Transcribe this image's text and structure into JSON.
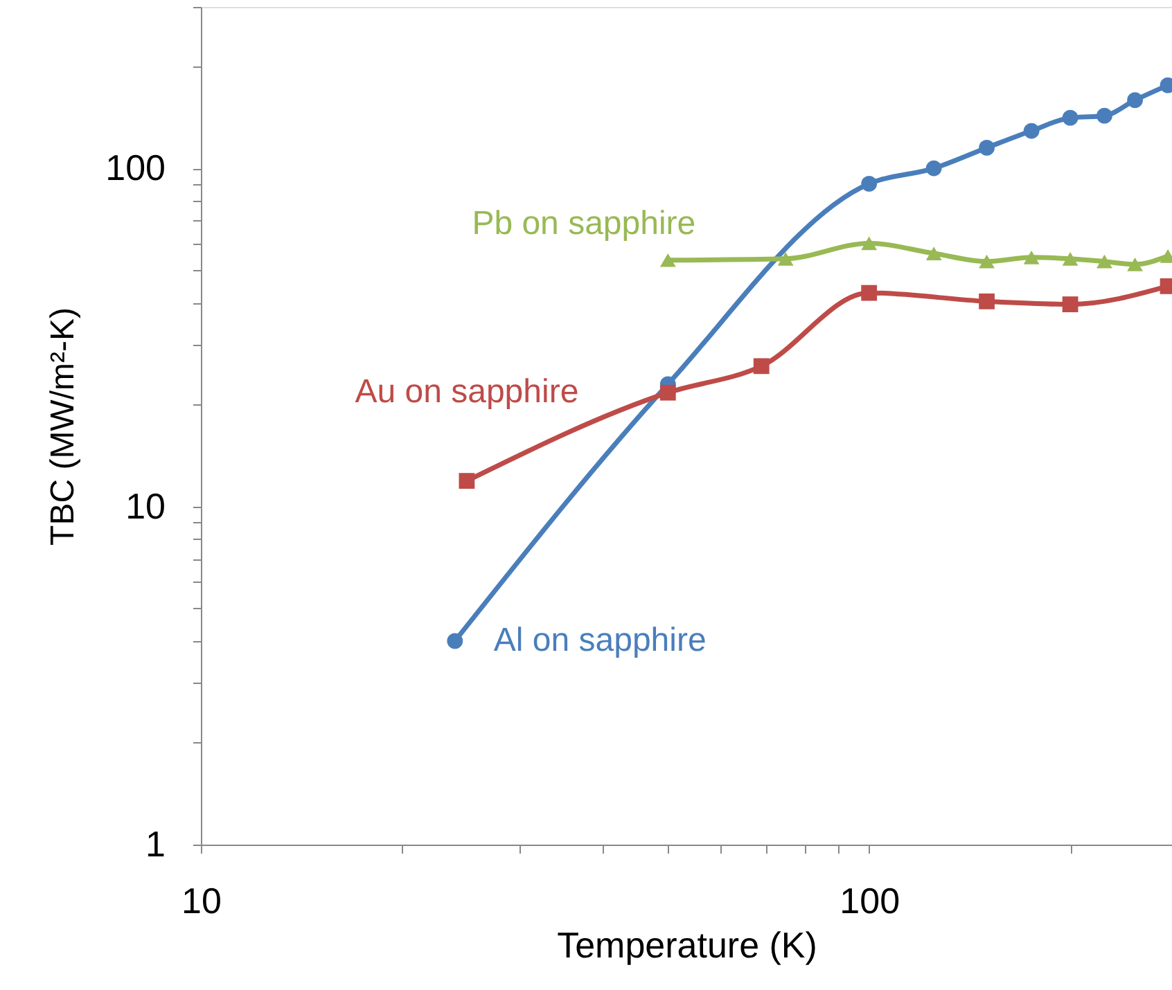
{
  "chart_data": {
    "type": "line",
    "xlabel": "Temperature (K)",
    "ylabel": "TBC  (MW/m²-K)",
    "log": "xy",
    "grid": false,
    "xlim": [
      10,
      284
    ],
    "ylim": [
      1,
      300
    ],
    "xticks": [
      10,
      {
        "value": 20,
        "label": null
      },
      {
        "value": 30,
        "label": null
      },
      {
        "value": 40,
        "label": null
      },
      {
        "value": 50,
        "label": null
      },
      {
        "value": 60,
        "label": null
      },
      {
        "value": 70,
        "label": null
      },
      {
        "value": 80,
        "label": null
      },
      {
        "value": 90,
        "label": null
      },
      100,
      {
        "value": 200,
        "label": null
      }
    ],
    "yticks": [
      1,
      {
        "value": 2,
        "label": null
      },
      {
        "value": 3,
        "label": null
      },
      {
        "value": 4,
        "label": null
      },
      {
        "value": 5,
        "label": null
      },
      {
        "value": 6,
        "label": null
      },
      {
        "value": 7,
        "label": null
      },
      {
        "value": 8,
        "label": null
      },
      {
        "value": 9,
        "label": null
      },
      10,
      {
        "value": 20,
        "label": null
      },
      {
        "value": 30,
        "label": null
      },
      {
        "value": 40,
        "label": null
      },
      {
        "value": 50,
        "label": null
      },
      {
        "value": 60,
        "label": null
      },
      {
        "value": 70,
        "label": null
      },
      {
        "value": 80,
        "label": null
      },
      {
        "value": 90,
        "label": null
      },
      100,
      {
        "value": 200,
        "label": null
      },
      {
        "value": 300,
        "label": null
      }
    ],
    "series": [
      {
        "name": "Al on sapphire",
        "color": "#4a7ebb",
        "marker": "circle",
        "x": [
          24,
          50,
          100,
          125,
          150,
          175,
          200,
          225,
          250,
          280
        ],
        "values": [
          4.0,
          23,
          90,
          100,
          115,
          129,
          141,
          143,
          159,
          176
        ]
      },
      {
        "name": "Au on sapphire",
        "color": "#be4b48",
        "marker": "square",
        "x": [
          25,
          50,
          69,
          100,
          150,
          200,
          280
        ],
        "values": [
          11.9,
          21.7,
          26,
          42.8,
          40.4,
          39.6,
          44.8
        ]
      },
      {
        "name": "Pb on sapphire",
        "color": "#98b954",
        "marker": "triangle",
        "x": [
          50,
          75,
          100,
          125,
          150,
          175,
          200,
          225,
          250,
          280
        ],
        "values": [
          53.5,
          54,
          60,
          56,
          53,
          54.5,
          54,
          53,
          52,
          55
        ]
      }
    ]
  }
}
